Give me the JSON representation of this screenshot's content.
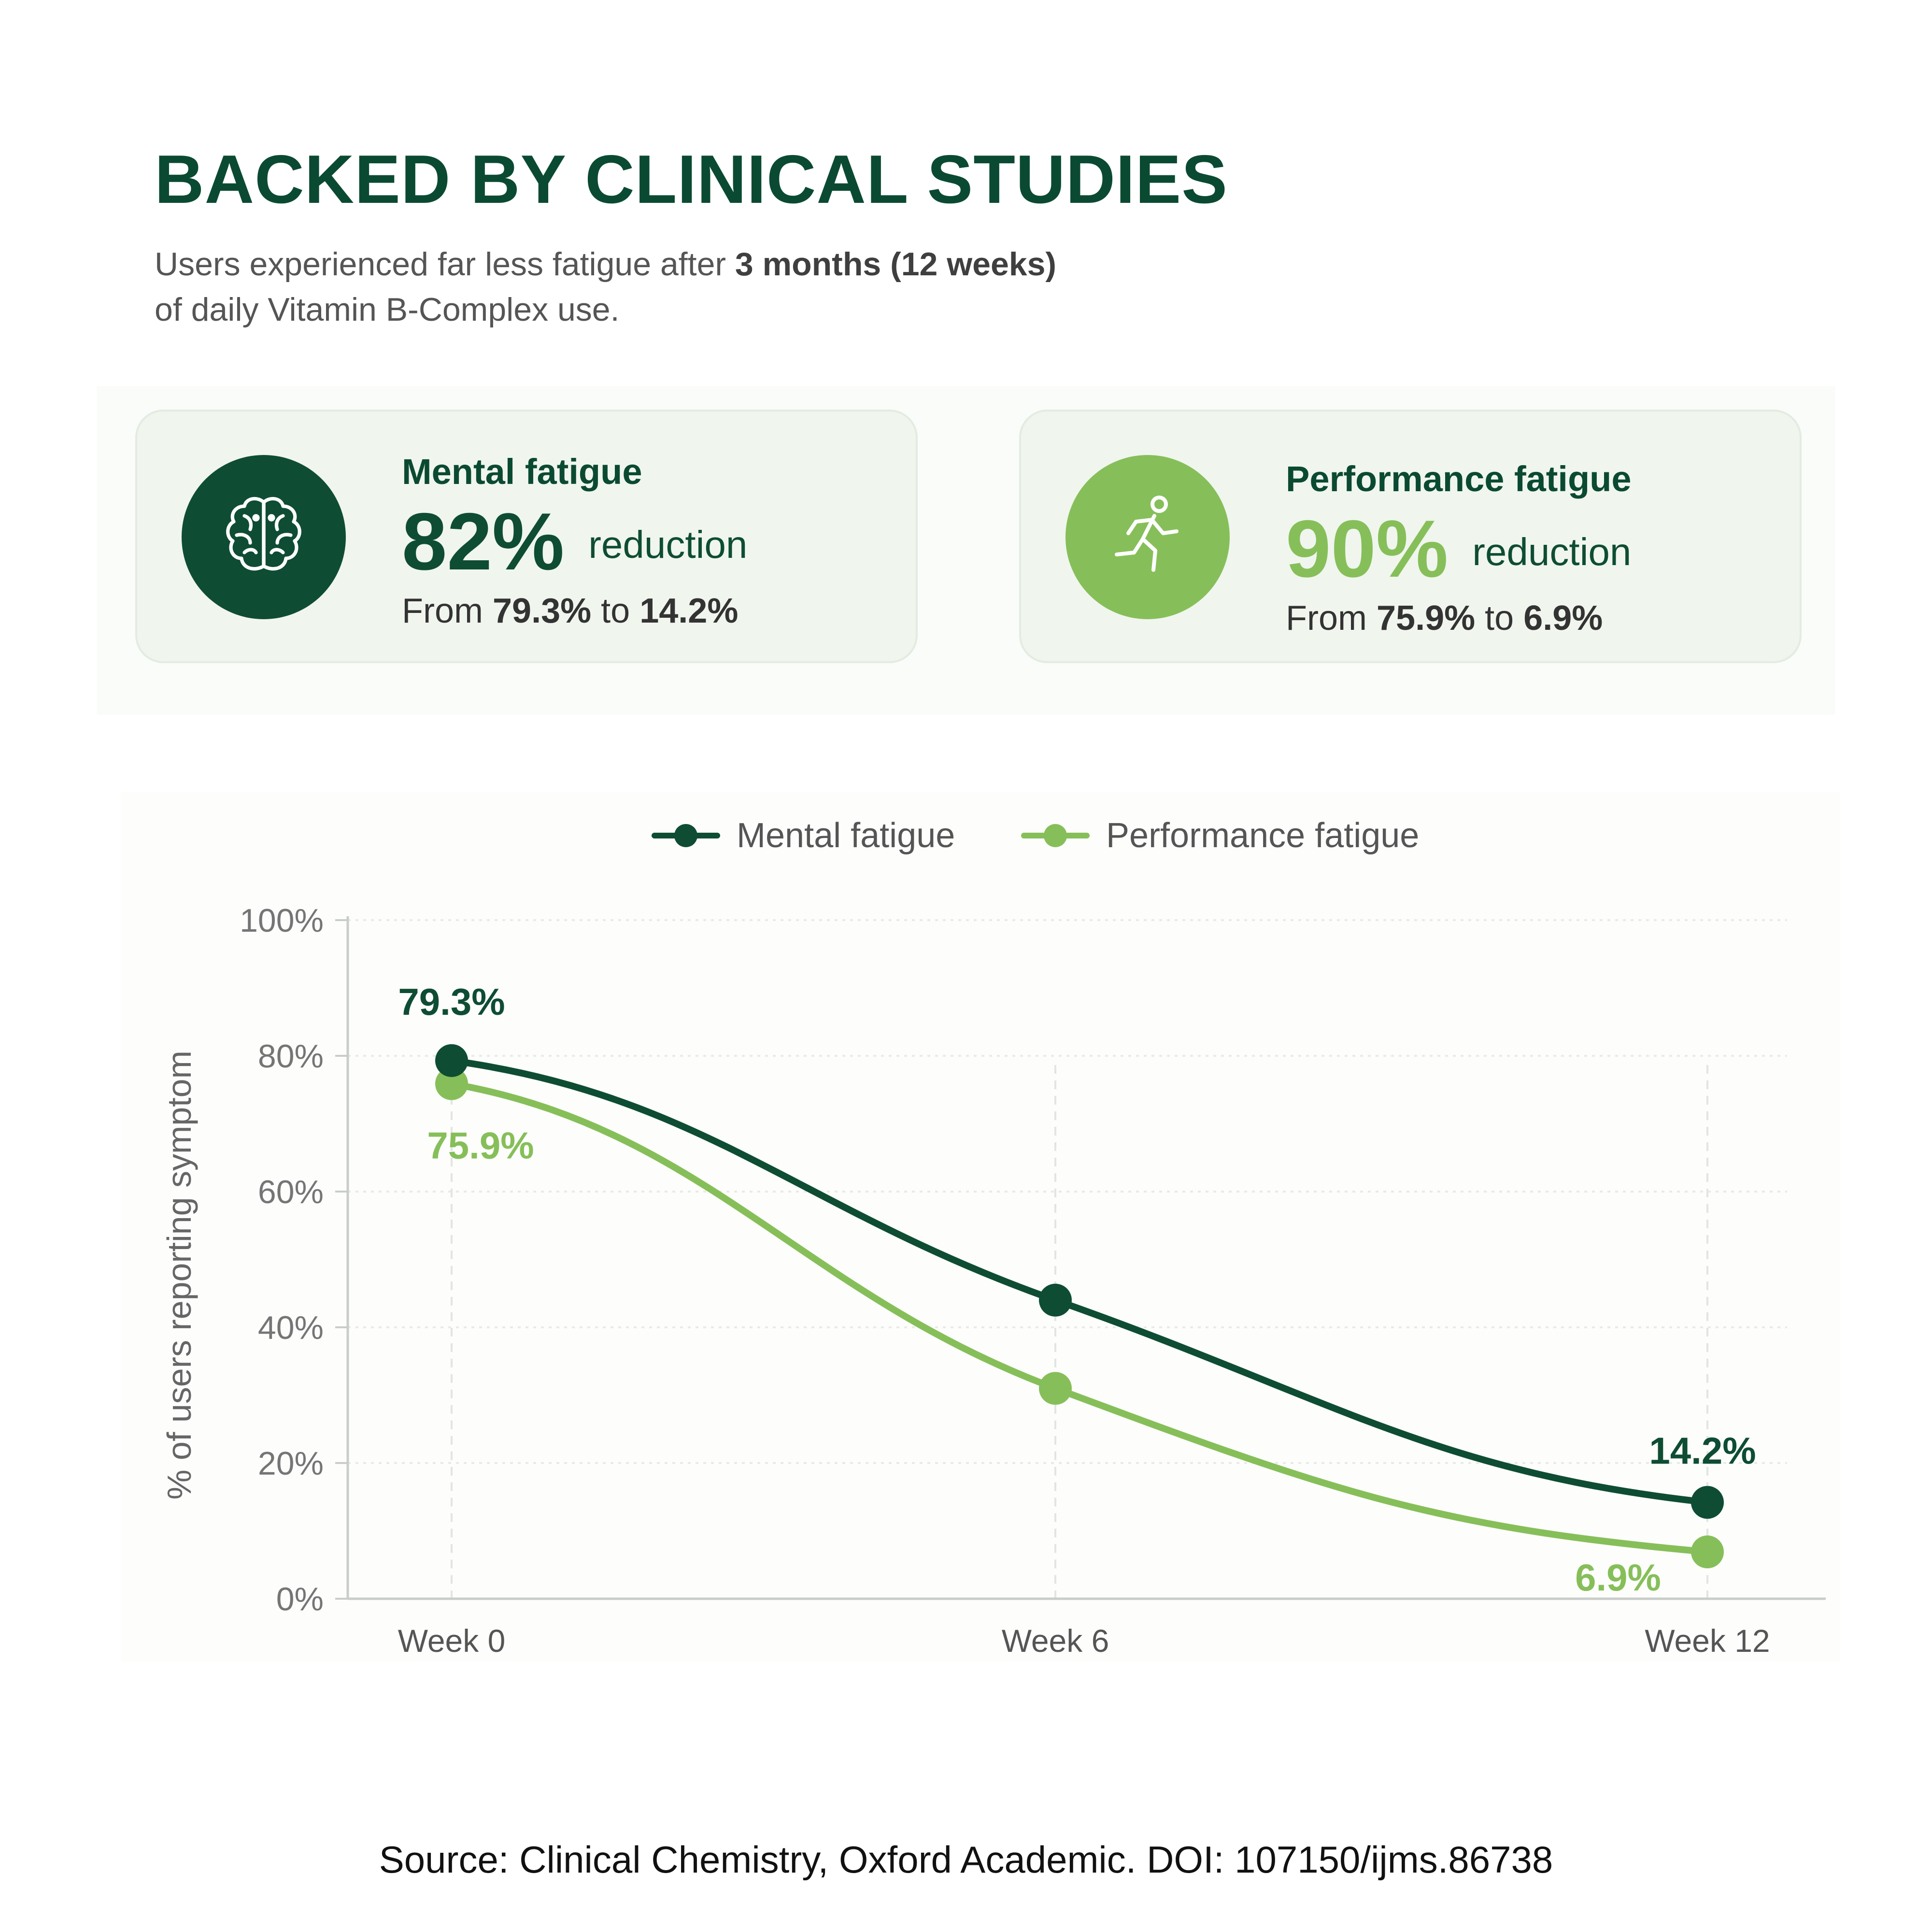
{
  "header": {
    "title": "BACKED BY CLINICAL STUDIES",
    "subtitle_prefix": "Users experienced far less fatigue after ",
    "subtitle_bold": "3 months (12 weeks)",
    "subtitle_suffix": "of daily Vitamin B-Complex use."
  },
  "cards": [
    {
      "label": "Mental fatigue",
      "percent": "82%",
      "reduction": "reduction",
      "from_word": "From ",
      "from_value": "79.3%",
      "to_word": " to ",
      "to_value": "14.2%",
      "icon": "brain-icon",
      "color": "#0e4d33"
    },
    {
      "label": "Performance fatigue",
      "percent": "90%",
      "reduction": "reduction",
      "from_word": "From ",
      "from_value": "75.9%",
      "to_word": " to ",
      "to_value": "6.9%",
      "icon": "running-person-icon",
      "color": "#86bf59"
    }
  ],
  "chart_data": {
    "type": "line",
    "x": [
      "Week 0",
      "Week 6",
      "Week 12"
    ],
    "ylabel": "% of users reporting symptom",
    "ylim": [
      0,
      100
    ],
    "yticks": [
      "0%",
      "20%",
      "40%",
      "60%",
      "80%",
      "100%"
    ],
    "grid": true,
    "legend": "top-center",
    "series": [
      {
        "name": "Mental fatigue",
        "color": "#0e4d33",
        "values": [
          79.3,
          44,
          14.2
        ],
        "labels": [
          "79.3%",
          null,
          "14.2%"
        ]
      },
      {
        "name": "Performance fatigue",
        "color": "#86bf59",
        "values": [
          75.9,
          31,
          6.9
        ],
        "labels": [
          "75.9%",
          null,
          "6.9%"
        ]
      }
    ]
  },
  "footer": {
    "source": "Source: Clinical Chemistry, Oxford Academic. DOI: 107150/ijms.86738"
  }
}
